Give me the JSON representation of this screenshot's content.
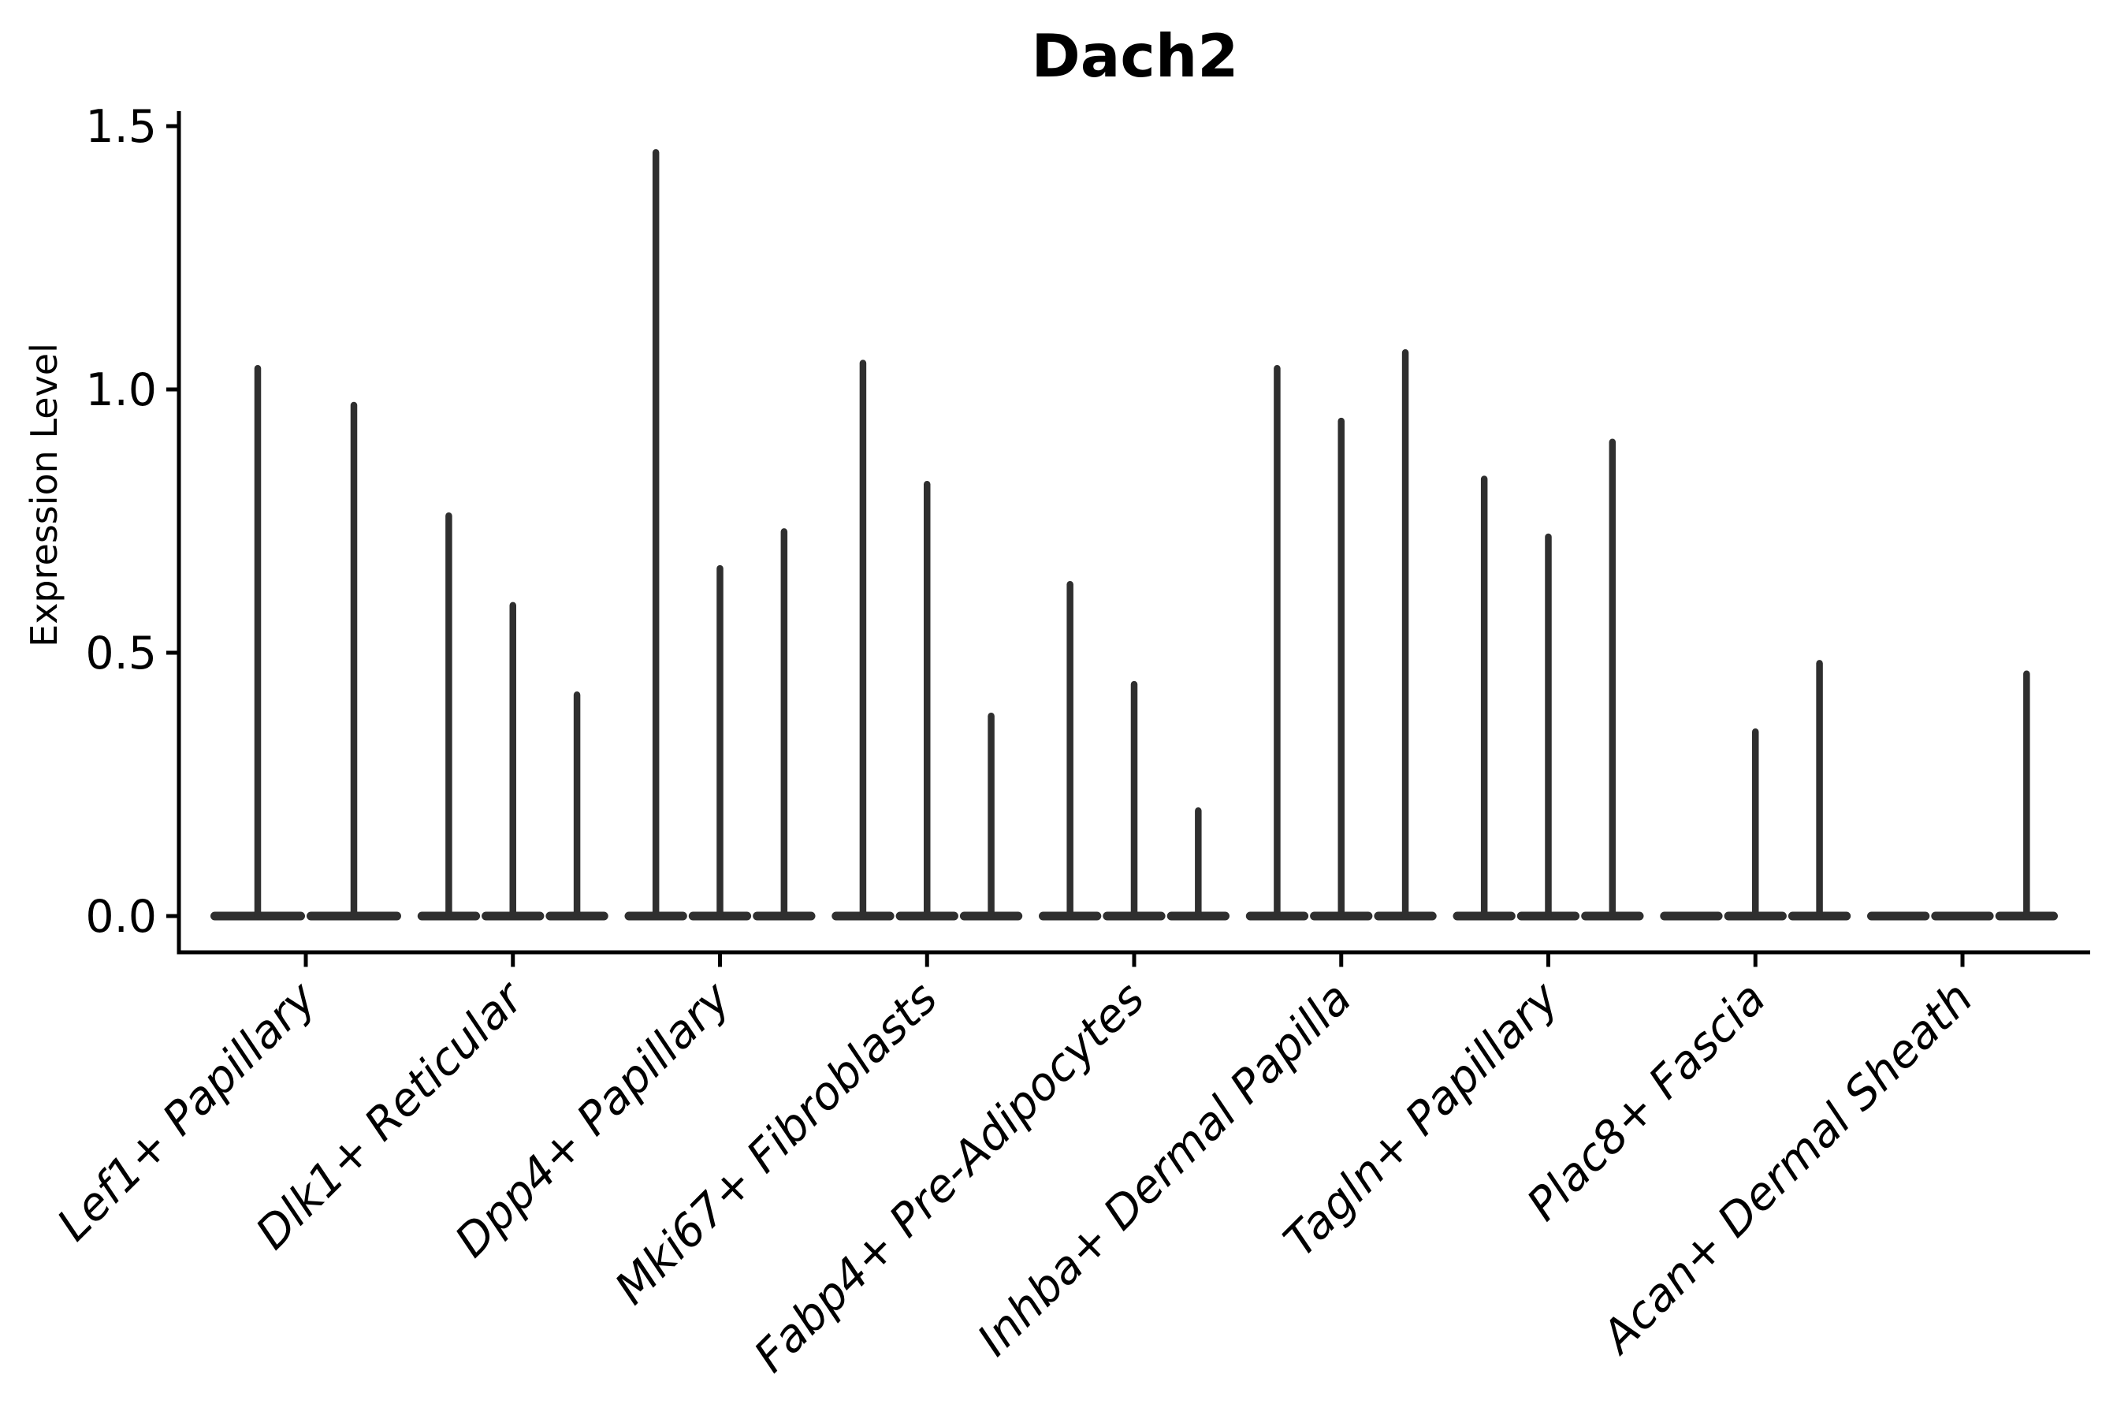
{
  "title": "Dach2",
  "chart_data": {
    "type": "violin",
    "title": "Dach2",
    "xlabel": "",
    "ylabel": "Expression Level",
    "ylim": [
      -0.073,
      1.528
    ],
    "yticks": [
      0.0,
      0.5,
      1.0,
      1.5
    ],
    "ytick_labels": [
      "0.0",
      "0.5",
      "1.0",
      "1.5"
    ],
    "grid": false,
    "legend": "none",
    "categories": [
      "Lef1+ Papillary",
      "Dlk1+ Reticular",
      "Dpp4+ Papillary",
      "Mki67+ Fibroblasts",
      "Fabp4+ Pre-Adipocytes",
      "Inhba+ Dermal Papilla",
      "Tagln+ Papillary",
      "Plac8+ Fascia",
      "Acan+ Dermal Sheath"
    ],
    "series": [
      {
        "name": "Lef1+ Papillary",
        "violin_max_values": [
          1.04,
          0.97
        ]
      },
      {
        "name": "Dlk1+ Reticular",
        "violin_max_values": [
          0.76,
          0.59,
          0.42
        ]
      },
      {
        "name": "Dpp4+ Papillary",
        "violin_max_values": [
          1.45,
          0.66,
          0.73
        ]
      },
      {
        "name": "Mki67+ Fibroblasts",
        "violin_max_values": [
          1.05,
          0.82,
          0.38
        ]
      },
      {
        "name": "Fabp4+ Pre-Adipocytes",
        "violin_max_values": [
          0.63,
          0.44,
          0.2
        ]
      },
      {
        "name": "Inhba+ Dermal Papilla",
        "violin_max_values": [
          1.04,
          0.94,
          1.07
        ]
      },
      {
        "name": "Tagln+ Papillary",
        "violin_max_values": [
          0.83,
          0.72,
          0.9
        ]
      },
      {
        "name": "Plac8+ Fascia",
        "violin_max_values": [
          0.0,
          0.35,
          0.48
        ]
      },
      {
        "name": "Acan+ Dermal Sheath",
        "violin_max_values": [
          0.0,
          0.0,
          0.46
        ]
      }
    ],
    "colors": {
      "violin": "#2f2f2f",
      "axis": "#000000",
      "text": "#000000",
      "background": "#ffffff"
    }
  }
}
